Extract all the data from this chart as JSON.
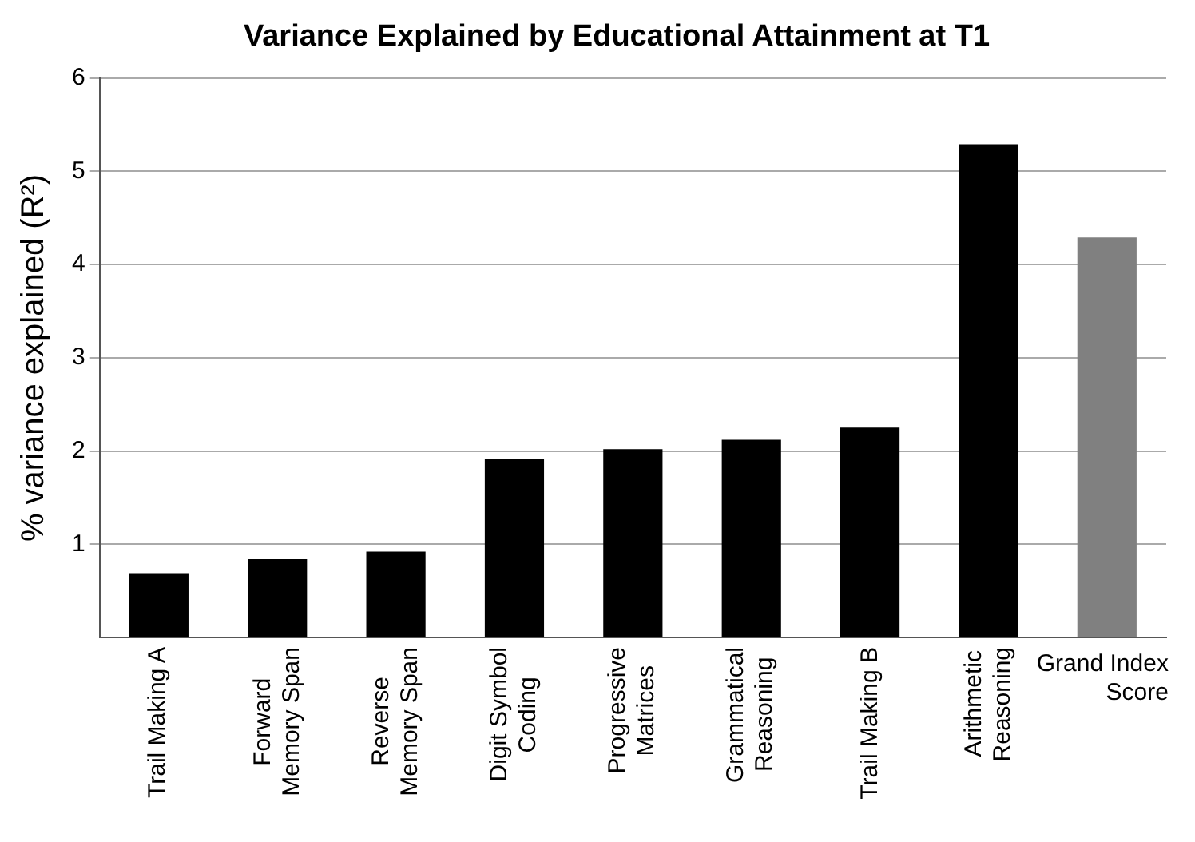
{
  "chart_data": {
    "type": "bar",
    "title": "Variance Explained by Educational Attainment at T1",
    "ylabel": "% variance explained (R²)",
    "categories": [
      "Trail Making A",
      "Forward\nMemory Span",
      "Reverse\nMemory Span",
      "Digit Symbol\nCoding",
      "Progressive\nMatrices",
      "Grammatical\nReasoning",
      "Trail Making B",
      "Arithmetic\nReasoning",
      "Grand Index\nScore"
    ],
    "values": [
      0.69,
      0.84,
      0.92,
      1.91,
      2.02,
      2.12,
      2.25,
      5.29,
      4.29
    ],
    "colors": [
      "#000000",
      "#000000",
      "#000000",
      "#000000",
      "#000000",
      "#000000",
      "#000000",
      "#000000",
      "#808080"
    ],
    "ylim": [
      0,
      6
    ],
    "yticks": [
      1,
      2,
      3,
      4,
      5,
      6
    ],
    "grid": "y",
    "legend": false
  }
}
